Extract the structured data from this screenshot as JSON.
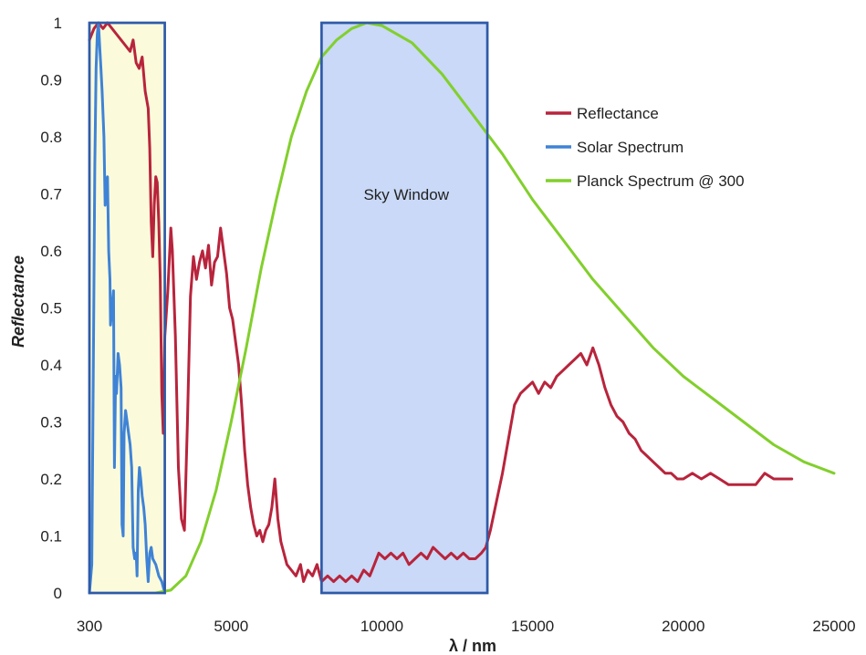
{
  "chart_data": {
    "type": "line",
    "title": "",
    "xlabel": "λ / nm",
    "ylabel": "Reflectance",
    "xlim": [
      300,
      25000
    ],
    "ylim": [
      0,
      1
    ],
    "x_ticks": [
      {
        "value": 300,
        "label": "300"
      },
      {
        "value": 5000,
        "label": "5000"
      },
      {
        "value": 10000,
        "label": "10000"
      },
      {
        "value": 15000,
        "label": "15000"
      },
      {
        "value": 20000,
        "label": "20000"
      },
      {
        "value": 25000,
        "label": "25000"
      }
    ],
    "y_ticks": [
      {
        "value": 0,
        "label": "0"
      },
      {
        "value": 0.1,
        "label": "0.1"
      },
      {
        "value": 0.2,
        "label": "0.2"
      },
      {
        "value": 0.3,
        "label": "0.3"
      },
      {
        "value": 0.4,
        "label": "0.4"
      },
      {
        "value": 0.5,
        "label": "0.5"
      },
      {
        "value": 0.6,
        "label": "0.6"
      },
      {
        "value": 0.7,
        "label": "0.7"
      },
      {
        "value": 0.8,
        "label": "0.8"
      },
      {
        "value": 0.9,
        "label": "0.9"
      },
      {
        "value": 1,
        "label": "1"
      }
    ],
    "grid": false,
    "legend_position": "top-right",
    "regions": [
      {
        "name": "solar-band",
        "label": "",
        "x_range": [
          300,
          2800
        ],
        "y_range": [
          0,
          1
        ],
        "fill": "#fbfbdc",
        "stroke": "#2f5aa8"
      },
      {
        "name": "sky-window",
        "label": "Sky Window",
        "x_range": [
          8000,
          13500
        ],
        "y_range": [
          0,
          1
        ],
        "fill": "#c9d9f7",
        "stroke": "#2f5aa8"
      }
    ],
    "series": [
      {
        "name": "Reflectance",
        "color": "#b8243c",
        "points": [
          [
            300,
            0.97
          ],
          [
            450,
            0.99
          ],
          [
            600,
            1.0
          ],
          [
            750,
            0.99
          ],
          [
            900,
            1.0
          ],
          [
            1050,
            0.99
          ],
          [
            1200,
            0.98
          ],
          [
            1350,
            0.97
          ],
          [
            1500,
            0.96
          ],
          [
            1650,
            0.95
          ],
          [
            1750,
            0.97
          ],
          [
            1850,
            0.93
          ],
          [
            1950,
            0.92
          ],
          [
            2050,
            0.94
          ],
          [
            2150,
            0.88
          ],
          [
            2250,
            0.85
          ],
          [
            2300,
            0.78
          ],
          [
            2350,
            0.65
          ],
          [
            2400,
            0.59
          ],
          [
            2450,
            0.68
          ],
          [
            2500,
            0.73
          ],
          [
            2550,
            0.72
          ],
          [
            2600,
            0.65
          ],
          [
            2650,
            0.55
          ],
          [
            2700,
            0.35
          ],
          [
            2750,
            0.28
          ],
          [
            2800,
            0.45
          ],
          [
            2900,
            0.53
          ],
          [
            3000,
            0.64
          ],
          [
            3050,
            0.6
          ],
          [
            3150,
            0.45
          ],
          [
            3250,
            0.22
          ],
          [
            3350,
            0.13
          ],
          [
            3450,
            0.11
          ],
          [
            3550,
            0.3
          ],
          [
            3650,
            0.52
          ],
          [
            3750,
            0.59
          ],
          [
            3850,
            0.55
          ],
          [
            3950,
            0.58
          ],
          [
            4050,
            0.6
          ],
          [
            4150,
            0.57
          ],
          [
            4250,
            0.61
          ],
          [
            4350,
            0.54
          ],
          [
            4450,
            0.58
          ],
          [
            4550,
            0.59
          ],
          [
            4650,
            0.64
          ],
          [
            4750,
            0.6
          ],
          [
            4850,
            0.56
          ],
          [
            4950,
            0.5
          ],
          [
            5050,
            0.48
          ],
          [
            5150,
            0.44
          ],
          [
            5250,
            0.4
          ],
          [
            5350,
            0.33
          ],
          [
            5450,
            0.25
          ],
          [
            5550,
            0.19
          ],
          [
            5650,
            0.15
          ],
          [
            5750,
            0.12
          ],
          [
            5850,
            0.1
          ],
          [
            5950,
            0.11
          ],
          [
            6050,
            0.09
          ],
          [
            6150,
            0.11
          ],
          [
            6250,
            0.12
          ],
          [
            6350,
            0.15
          ],
          [
            6450,
            0.2
          ],
          [
            6550,
            0.13
          ],
          [
            6650,
            0.09
          ],
          [
            6750,
            0.07
          ],
          [
            6850,
            0.05
          ],
          [
            7000,
            0.04
          ],
          [
            7150,
            0.03
          ],
          [
            7300,
            0.05
          ],
          [
            7400,
            0.02
          ],
          [
            7550,
            0.04
          ],
          [
            7700,
            0.03
          ],
          [
            7850,
            0.05
          ],
          [
            8000,
            0.02
          ],
          [
            8200,
            0.03
          ],
          [
            8400,
            0.02
          ],
          [
            8600,
            0.03
          ],
          [
            8800,
            0.02
          ],
          [
            9000,
            0.03
          ],
          [
            9200,
            0.02
          ],
          [
            9400,
            0.04
          ],
          [
            9600,
            0.03
          ],
          [
            9750,
            0.05
          ],
          [
            9900,
            0.07
          ],
          [
            10100,
            0.06
          ],
          [
            10300,
            0.07
          ],
          [
            10500,
            0.06
          ],
          [
            10700,
            0.07
          ],
          [
            10900,
            0.05
          ],
          [
            11100,
            0.06
          ],
          [
            11300,
            0.07
          ],
          [
            11500,
            0.06
          ],
          [
            11700,
            0.08
          ],
          [
            11900,
            0.07
          ],
          [
            12100,
            0.06
          ],
          [
            12300,
            0.07
          ],
          [
            12500,
            0.06
          ],
          [
            12700,
            0.07
          ],
          [
            12900,
            0.06
          ],
          [
            13100,
            0.06
          ],
          [
            13300,
            0.07
          ],
          [
            13450,
            0.08
          ],
          [
            13600,
            0.11
          ],
          [
            13800,
            0.16
          ],
          [
            14000,
            0.21
          ],
          [
            14200,
            0.27
          ],
          [
            14400,
            0.33
          ],
          [
            14600,
            0.35
          ],
          [
            14800,
            0.36
          ],
          [
            15000,
            0.37
          ],
          [
            15200,
            0.35
          ],
          [
            15400,
            0.37
          ],
          [
            15600,
            0.36
          ],
          [
            15800,
            0.38
          ],
          [
            16000,
            0.39
          ],
          [
            16200,
            0.4
          ],
          [
            16400,
            0.41
          ],
          [
            16600,
            0.42
          ],
          [
            16800,
            0.4
          ],
          [
            17000,
            0.43
          ],
          [
            17200,
            0.4
          ],
          [
            17400,
            0.36
          ],
          [
            17600,
            0.33
          ],
          [
            17800,
            0.31
          ],
          [
            18000,
            0.3
          ],
          [
            18200,
            0.28
          ],
          [
            18400,
            0.27
          ],
          [
            18600,
            0.25
          ],
          [
            18800,
            0.24
          ],
          [
            19000,
            0.23
          ],
          [
            19200,
            0.22
          ],
          [
            19400,
            0.21
          ],
          [
            19600,
            0.21
          ],
          [
            19800,
            0.2
          ],
          [
            20000,
            0.2
          ],
          [
            20300,
            0.21
          ],
          [
            20600,
            0.2
          ],
          [
            20900,
            0.21
          ],
          [
            21200,
            0.2
          ],
          [
            21500,
            0.19
          ],
          [
            21800,
            0.19
          ],
          [
            22100,
            0.19
          ],
          [
            22400,
            0.19
          ],
          [
            22700,
            0.21
          ],
          [
            23000,
            0.2
          ],
          [
            23300,
            0.2
          ],
          [
            23600,
            0.2
          ]
        ]
      },
      {
        "name": "Solar Spectrum",
        "color": "#3f83d6",
        "points": [
          [
            300,
            0.0
          ],
          [
            380,
            0.05
          ],
          [
            430,
            0.4
          ],
          [
            480,
            0.75
          ],
          [
            520,
            0.92
          ],
          [
            560,
            0.98
          ],
          [
            600,
            1.0
          ],
          [
            640,
            0.96
          ],
          [
            680,
            0.92
          ],
          [
            720,
            0.88
          ],
          [
            780,
            0.8
          ],
          [
            820,
            0.68
          ],
          [
            850,
            0.72
          ],
          [
            900,
            0.73
          ],
          [
            940,
            0.6
          ],
          [
            980,
            0.55
          ],
          [
            1000,
            0.47
          ],
          [
            1050,
            0.5
          ],
          [
            1100,
            0.53
          ],
          [
            1130,
            0.22
          ],
          [
            1170,
            0.38
          ],
          [
            1200,
            0.35
          ],
          [
            1250,
            0.42
          ],
          [
            1300,
            0.4
          ],
          [
            1350,
            0.36
          ],
          [
            1380,
            0.12
          ],
          [
            1420,
            0.1
          ],
          [
            1450,
            0.28
          ],
          [
            1500,
            0.32
          ],
          [
            1550,
            0.3
          ],
          [
            1600,
            0.28
          ],
          [
            1650,
            0.26
          ],
          [
            1700,
            0.22
          ],
          [
            1750,
            0.08
          ],
          [
            1800,
            0.06
          ],
          [
            1850,
            0.07
          ],
          [
            1880,
            0.03
          ],
          [
            1920,
            0.18
          ],
          [
            1960,
            0.22
          ],
          [
            2000,
            0.2
          ],
          [
            2050,
            0.17
          ],
          [
            2100,
            0.15
          ],
          [
            2150,
            0.12
          ],
          [
            2200,
            0.06
          ],
          [
            2250,
            0.02
          ],
          [
            2300,
            0.07
          ],
          [
            2350,
            0.08
          ],
          [
            2400,
            0.06
          ],
          [
            2500,
            0.05
          ],
          [
            2600,
            0.03
          ],
          [
            2700,
            0.02
          ],
          [
            2800,
            0.0
          ]
        ]
      },
      {
        "name": "Planck Spectrum @ 300",
        "color": "#82cf2c",
        "points": [
          [
            2500,
            0.0
          ],
          [
            3000,
            0.005
          ],
          [
            3500,
            0.03
          ],
          [
            4000,
            0.09
          ],
          [
            4500,
            0.18
          ],
          [
            5000,
            0.3
          ],
          [
            5500,
            0.43
          ],
          [
            6000,
            0.57
          ],
          [
            6500,
            0.69
          ],
          [
            7000,
            0.8
          ],
          [
            7500,
            0.88
          ],
          [
            8000,
            0.94
          ],
          [
            8500,
            0.97
          ],
          [
            9000,
            0.99
          ],
          [
            9500,
            1.0
          ],
          [
            10000,
            0.995
          ],
          [
            11000,
            0.965
          ],
          [
            12000,
            0.91
          ],
          [
            13000,
            0.84
          ],
          [
            14000,
            0.77
          ],
          [
            15000,
            0.69
          ],
          [
            16000,
            0.62
          ],
          [
            17000,
            0.55
          ],
          [
            18000,
            0.49
          ],
          [
            19000,
            0.43
          ],
          [
            20000,
            0.38
          ],
          [
            21000,
            0.34
          ],
          [
            22000,
            0.3
          ],
          [
            23000,
            0.26
          ],
          [
            24000,
            0.23
          ],
          [
            25000,
            0.21
          ]
        ]
      }
    ]
  }
}
